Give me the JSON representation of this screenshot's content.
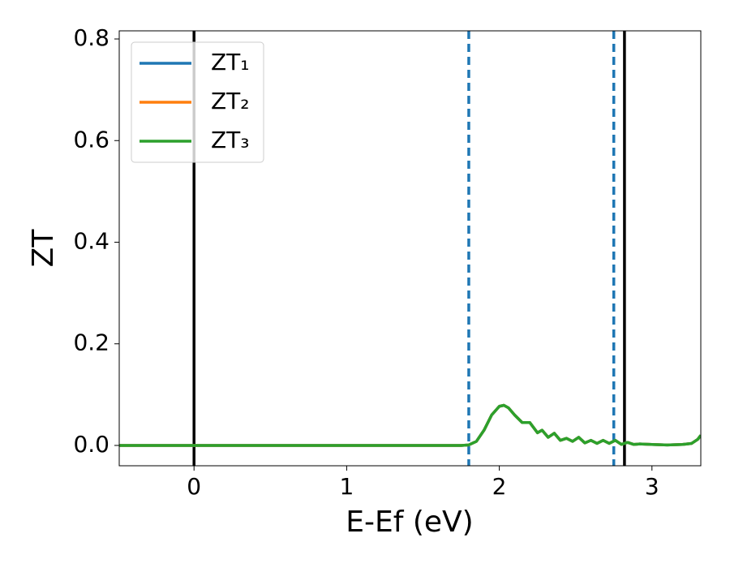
{
  "chart_data": {
    "type": "line",
    "xlabel": "E-Ef (eV)",
    "ylabel": "ZT",
    "x": [
      -0.5,
      0,
      0.5,
      1.0,
      1.5,
      1.75,
      1.8,
      1.85,
      1.9,
      1.95,
      2.0,
      2.03,
      2.06,
      2.1,
      2.15,
      2.2,
      2.25,
      2.28,
      2.32,
      2.36,
      2.4,
      2.44,
      2.48,
      2.52,
      2.56,
      2.6,
      2.64,
      2.68,
      2.72,
      2.76,
      2.8,
      2.84,
      2.88,
      2.92,
      3.0,
      3.1,
      3.2,
      3.26,
      3.3,
      3.32
    ],
    "series": [
      {
        "name": "ZT₁",
        "color": "#1f77b4",
        "values": [
          0,
          0,
          0,
          0,
          0,
          0,
          0.001,
          0.008,
          0.03,
          0.06,
          0.077,
          0.079,
          0.074,
          0.06,
          0.045,
          0.045,
          0.025,
          0.03,
          0.016,
          0.024,
          0.01,
          0.014,
          0.008,
          0.016,
          0.005,
          0.01,
          0.004,
          0.01,
          0.004,
          0.01,
          0.002,
          0.006,
          0.002,
          0.003,
          0.002,
          0.001,
          0.002,
          0.004,
          0.012,
          0.02
        ]
      },
      {
        "name": "ZT₂",
        "color": "#ff7f0e",
        "values": [
          0,
          0,
          0,
          0,
          0,
          0,
          0.001,
          0.008,
          0.03,
          0.06,
          0.077,
          0.079,
          0.074,
          0.06,
          0.045,
          0.045,
          0.025,
          0.03,
          0.016,
          0.024,
          0.01,
          0.014,
          0.008,
          0.016,
          0.005,
          0.01,
          0.004,
          0.01,
          0.004,
          0.01,
          0.002,
          0.006,
          0.002,
          0.003,
          0.002,
          0.001,
          0.002,
          0.004,
          0.012,
          0.02
        ]
      },
      {
        "name": "ZT₃",
        "color": "#2ca02c",
        "values": [
          0,
          0,
          0,
          0,
          0,
          0,
          0.001,
          0.008,
          0.03,
          0.06,
          0.077,
          0.079,
          0.074,
          0.06,
          0.045,
          0.045,
          0.025,
          0.03,
          0.016,
          0.024,
          0.01,
          0.014,
          0.008,
          0.016,
          0.005,
          0.01,
          0.004,
          0.01,
          0.004,
          0.01,
          0.002,
          0.006,
          0.002,
          0.003,
          0.002,
          0.001,
          0.002,
          0.004,
          0.012,
          0.02
        ]
      }
    ],
    "vlines": [
      {
        "x": 0,
        "color": "#000000",
        "style": "solid"
      },
      {
        "x": 1.8,
        "color": "#1f77b4",
        "style": "dashed"
      },
      {
        "x": 2.75,
        "color": "#1f77b4",
        "style": "dashed"
      },
      {
        "x": 2.82,
        "color": "#000000",
        "style": "solid"
      }
    ],
    "xlim": [
      -0.49,
      3.32
    ],
    "ylim": [
      -0.04,
      0.816
    ],
    "xticks": [
      0,
      1,
      2,
      3
    ],
    "yticks": [
      {
        "value": 0,
        "label": "0.0"
      },
      0.2,
      0.4,
      0.6,
      0.8
    ],
    "legend": "upper left"
  }
}
